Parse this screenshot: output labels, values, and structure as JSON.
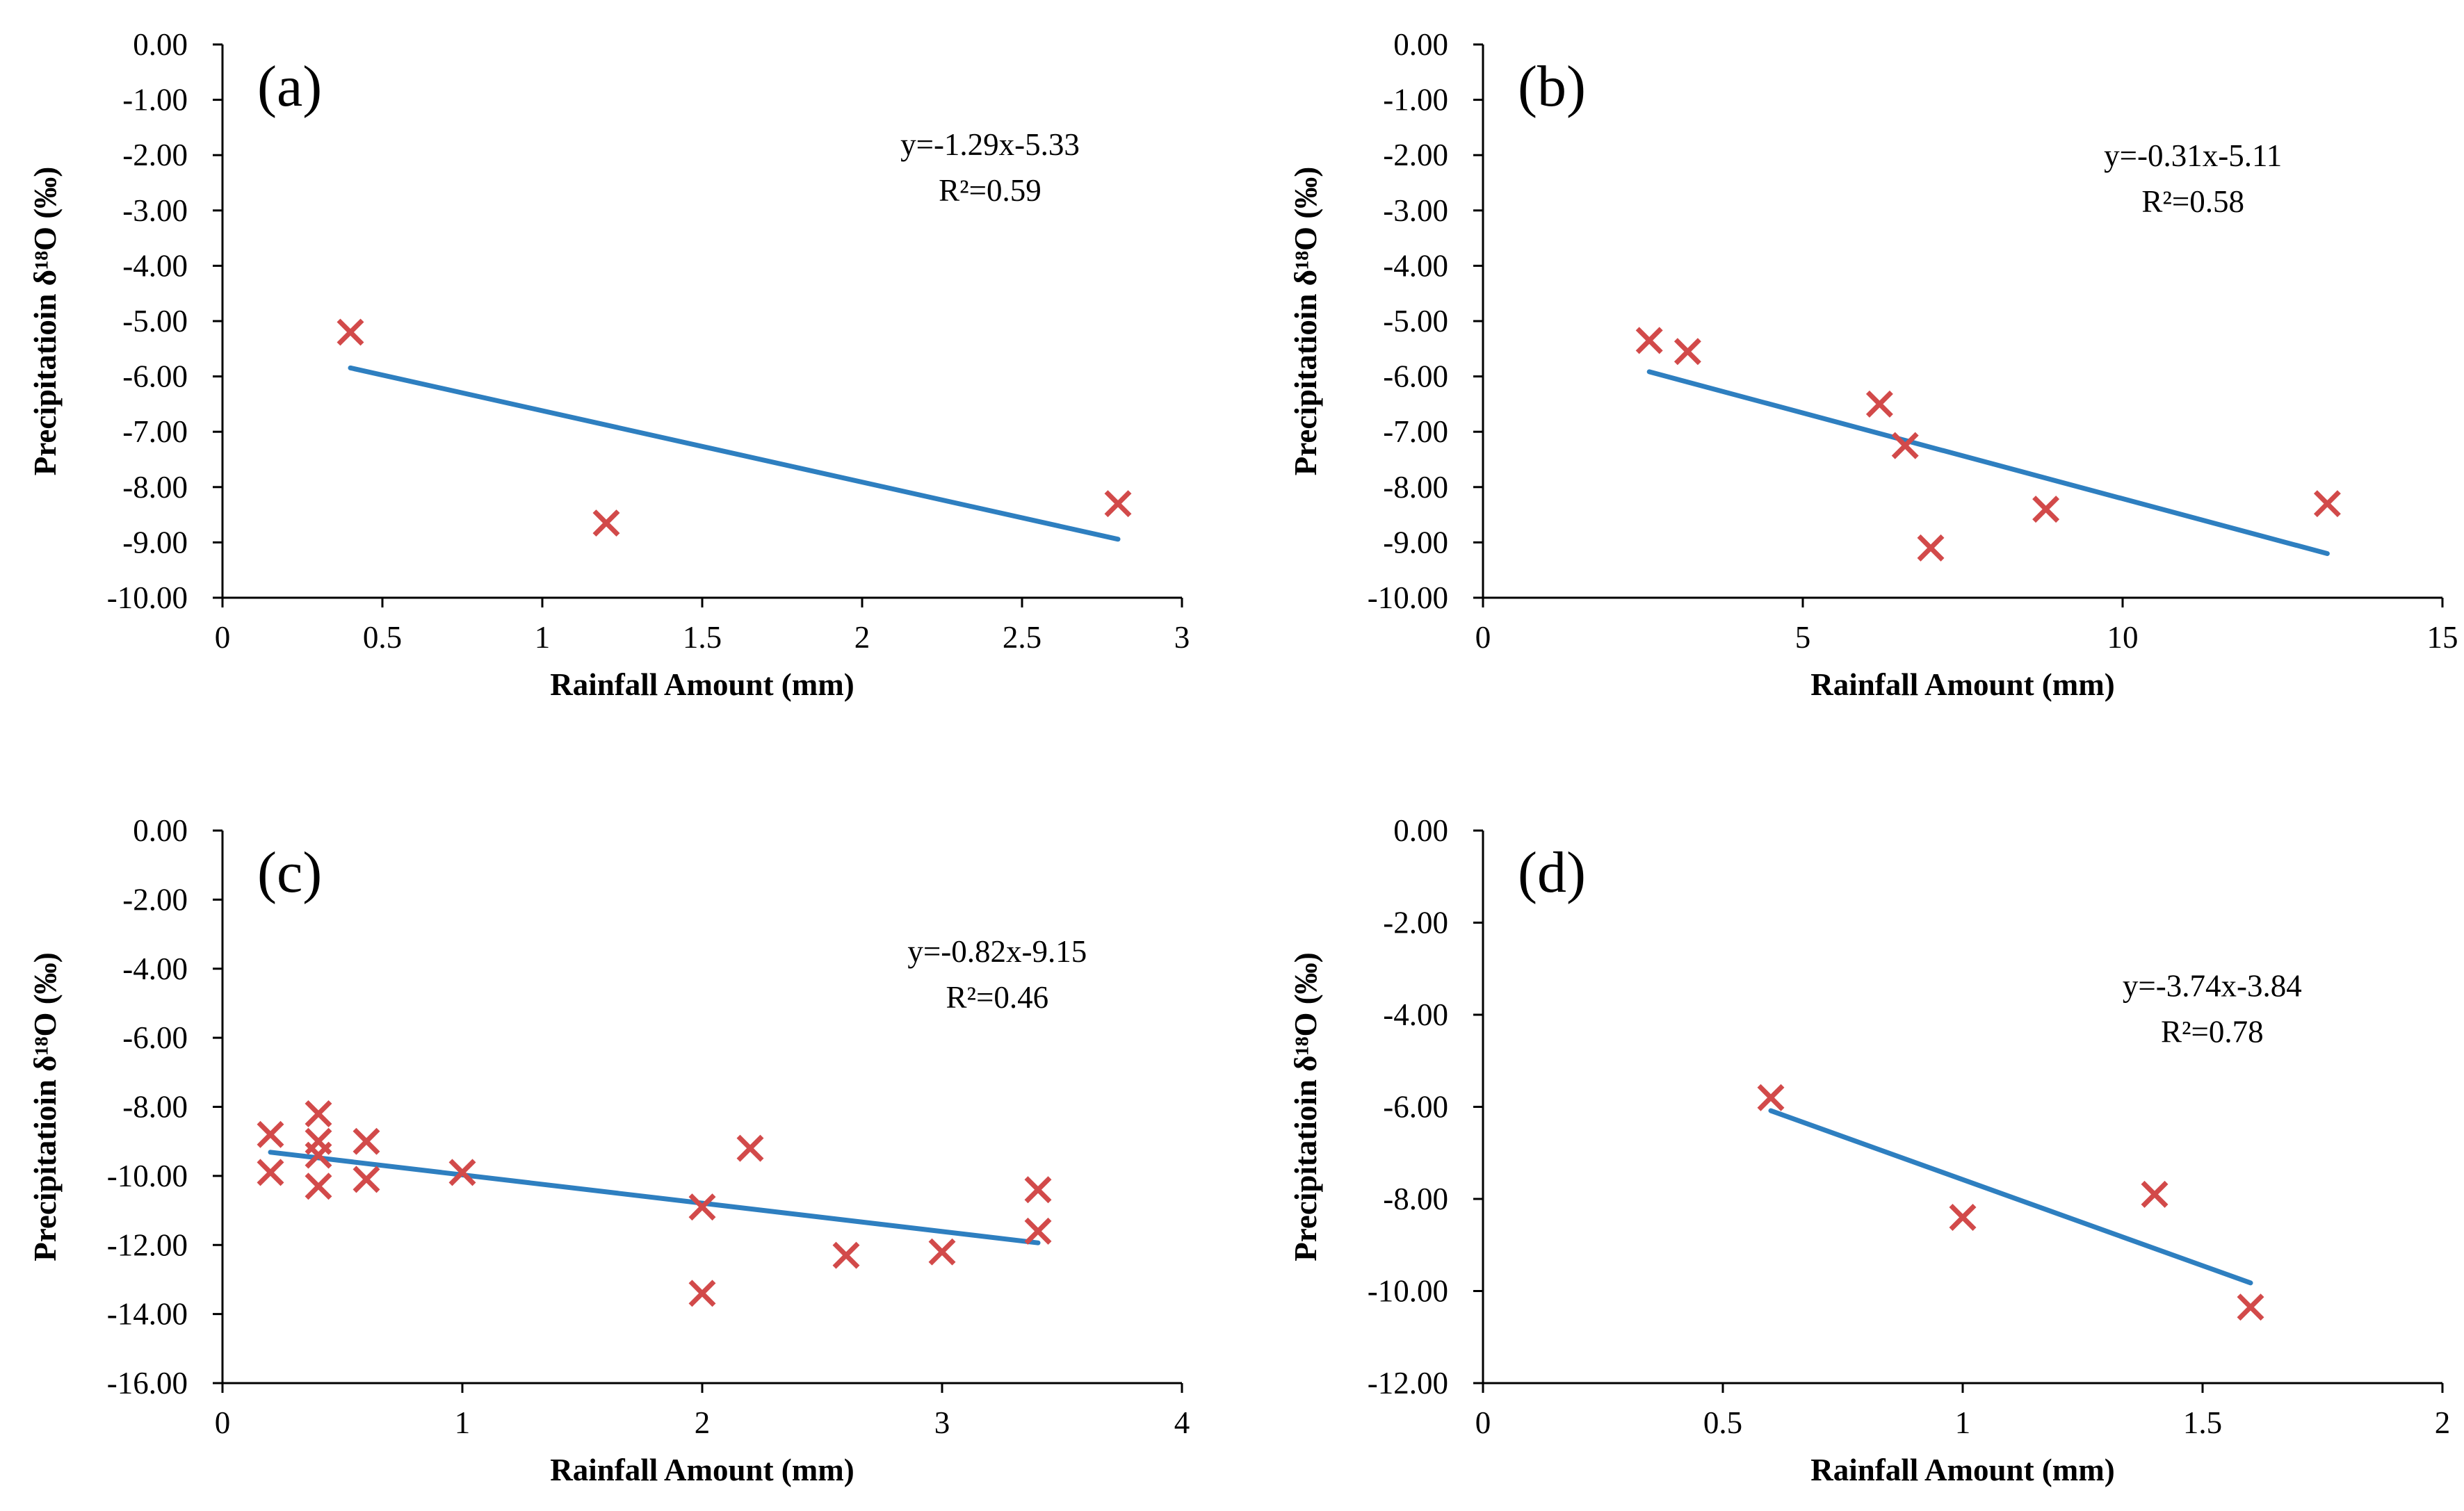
{
  "chart_data": [
    {
      "panel": "(a)",
      "type": "scatter",
      "xlabel": "Rainfall Amount (mm)",
      "ylabel": "Precipitatioin δ¹⁸O (‰)",
      "xlim": [
        0,
        3
      ],
      "ylim": [
        -10,
        0
      ],
      "xticks": [
        0,
        0.5,
        1,
        1.5,
        2,
        2.5,
        3
      ],
      "xtick_labels": [
        "0",
        "0.5",
        "1",
        "1.5",
        "2",
        "2.5",
        "3"
      ],
      "yticks": [
        0,
        -1,
        -2,
        -3,
        -4,
        -5,
        -6,
        -7,
        -8,
        -9,
        -10
      ],
      "ytick_labels": [
        "0.00",
        "-1.00",
        "-2.00",
        "-3.00",
        "-4.00",
        "-5.00",
        "-6.00",
        "-7.00",
        "-8.00",
        "-9.00",
        "-10.00"
      ],
      "points": [
        [
          0.4,
          -5.2
        ],
        [
          1.2,
          -8.65
        ],
        [
          2.8,
          -8.3
        ]
      ],
      "trendline": {
        "x": [
          0.4,
          2.8
        ],
        "equation": "y=-1.29x-5.33",
        "r2": "R²=0.59",
        "slope": -1.29,
        "intercept": -5.33
      },
      "eq_pos": [
        2.4,
        -2.0
      ]
    },
    {
      "panel": "(b)",
      "type": "scatter",
      "xlabel": "Rainfall Amount (mm)",
      "ylabel": "Precipitatioin δ¹⁸O (‰)",
      "xlim": [
        0,
        15
      ],
      "ylim": [
        -10,
        0
      ],
      "xticks": [
        0,
        5,
        10,
        15
      ],
      "xtick_labels": [
        "0",
        "5",
        "10",
        "15"
      ],
      "yticks": [
        0,
        -1,
        -2,
        -3,
        -4,
        -5,
        -6,
        -7,
        -8,
        -9,
        -10
      ],
      "ytick_labels": [
        "0.00",
        "-1.00",
        "-2.00",
        "-3.00",
        "-4.00",
        "-5.00",
        "-6.00",
        "-7.00",
        "-8.00",
        "-9.00",
        "-10.00"
      ],
      "points": [
        [
          2.6,
          -5.35
        ],
        [
          3.2,
          -5.55
        ],
        [
          6.2,
          -6.5
        ],
        [
          6.6,
          -7.25
        ],
        [
          7.0,
          -9.1
        ],
        [
          8.8,
          -8.4
        ],
        [
          13.2,
          -8.3
        ]
      ],
      "trendline": {
        "x": [
          2.6,
          13.2
        ],
        "equation": "y=-0.31x-5.11",
        "r2": "R²=0.58",
        "slope": -0.31,
        "intercept": -5.11
      },
      "eq_pos": [
        11.1,
        -2.2
      ]
    },
    {
      "panel": "(c)",
      "type": "scatter",
      "xlabel": "Rainfall Amount (mm)",
      "ylabel": "Precipitatioin δ¹⁸O (‰)",
      "xlim": [
        0,
        4
      ],
      "ylim": [
        -16,
        0
      ],
      "xticks": [
        0,
        1,
        2,
        3,
        4
      ],
      "xtick_labels": [
        "0",
        "1",
        "2",
        "3",
        "4"
      ],
      "yticks": [
        0,
        -2,
        -4,
        -6,
        -8,
        -10,
        -12,
        -14,
        -16
      ],
      "ytick_labels": [
        "0.00",
        "-2.00",
        "-4.00",
        "-6.00",
        "-8.00",
        "-10.00",
        "-12.00",
        "-14.00",
        "-16.00"
      ],
      "points": [
        [
          0.2,
          -8.8
        ],
        [
          0.2,
          -9.9
        ],
        [
          0.4,
          -8.2
        ],
        [
          0.4,
          -9.0
        ],
        [
          0.4,
          -9.4
        ],
        [
          0.4,
          -10.3
        ],
        [
          0.6,
          -9.0
        ],
        [
          0.6,
          -10.1
        ],
        [
          1.0,
          -9.9
        ],
        [
          2.0,
          -10.9
        ],
        [
          2.0,
          -13.4
        ],
        [
          2.2,
          -9.2
        ],
        [
          2.6,
          -12.3
        ],
        [
          3.0,
          -12.2
        ],
        [
          3.4,
          -10.4
        ],
        [
          3.4,
          -11.6
        ]
      ],
      "trendline": {
        "x": [
          0.2,
          3.4
        ],
        "equation": "y=-0.82x-9.15",
        "r2": "R²=0.46",
        "slope": -0.82,
        "intercept": -9.15
      },
      "eq_pos": [
        3.23,
        -3.8
      ]
    },
    {
      "panel": "(d)",
      "type": "scatter",
      "xlabel": "Rainfall Amount (mm)",
      "ylabel": "Precipitatioin δ¹⁸O (‰)",
      "xlim": [
        0,
        2
      ],
      "ylim": [
        -12,
        0
      ],
      "xticks": [
        0,
        0.5,
        1,
        1.5,
        2
      ],
      "xtick_labels": [
        "0",
        "0.5",
        "1",
        "1.5",
        "2"
      ],
      "yticks": [
        0,
        -2,
        -4,
        -6,
        -8,
        -10,
        -12
      ],
      "ytick_labels": [
        "0.00",
        "-2.00",
        "-4.00",
        "-6.00",
        "-8.00",
        "-10.00",
        "-12.00"
      ],
      "points": [
        [
          0.6,
          -5.8
        ],
        [
          1.0,
          -8.4
        ],
        [
          1.4,
          -7.9
        ],
        [
          1.6,
          -10.35
        ]
      ],
      "trendline": {
        "x": [
          0.6,
          1.6
        ],
        "equation": "y=-3.74x-3.84",
        "r2": "R²=0.78",
        "slope": -3.74,
        "intercept": -3.84
      },
      "eq_pos": [
        1.52,
        -3.6
      ]
    }
  ],
  "colors": {
    "marker": "#d24a4a",
    "trendline": "#2e7fc0",
    "axis": "#000000"
  }
}
